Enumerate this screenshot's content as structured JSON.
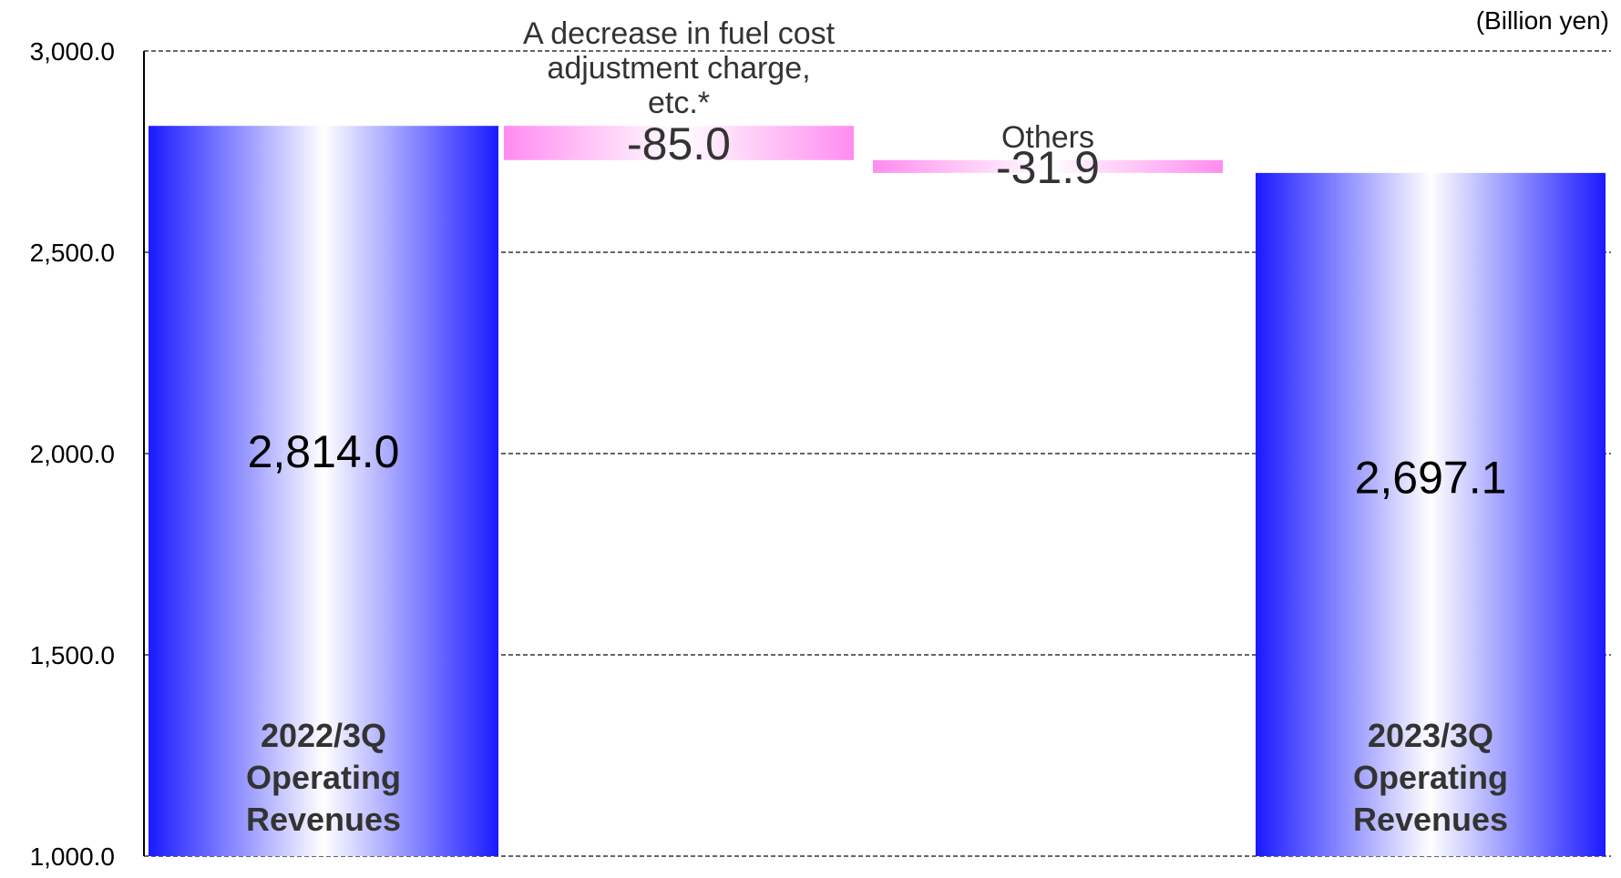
{
  "chart_data": {
    "type": "bar",
    "variant": "waterfall",
    "unit_label": "(Billion yen)",
    "ylim": [
      1000,
      3000
    ],
    "yticks": [
      1000,
      1500,
      2000,
      2500,
      3000
    ],
    "ytick_labels": [
      "1,000.0",
      "1,500.0",
      "2,000.0",
      "2,500.0",
      "3,000.0"
    ],
    "grid": true,
    "steps": [
      {
        "kind": "total",
        "label_lines": [
          "2022/3Q",
          "Operating",
          "Revenues"
        ],
        "value": 2814.0,
        "value_label": "2,814.0"
      },
      {
        "kind": "delta",
        "label_lines": [
          "A decrease in fuel cost",
          "adjustment charge,",
          "etc.*"
        ],
        "value": -85.0,
        "value_label": "-85.0"
      },
      {
        "kind": "delta",
        "label_lines": [
          "Others"
        ],
        "value": -31.9,
        "value_label": "-31.9"
      },
      {
        "kind": "total",
        "label_lines": [
          "2023/3Q",
          "Operating",
          "Revenues"
        ],
        "value": 2697.1,
        "value_label": "2,697.1"
      }
    ],
    "colors": {
      "total_edge": "#1a1aff",
      "total_center": "#ffffff",
      "delta_edge": "#ff8cf0",
      "delta_center": "#ffffff",
      "grid": "#333333",
      "axis": "#000000",
      "text": "#000000",
      "label_text": "#333333"
    }
  }
}
